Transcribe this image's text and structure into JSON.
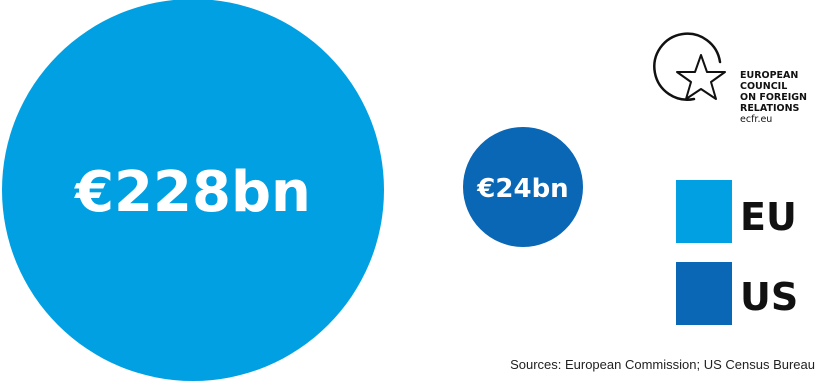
{
  "chart_data": {
    "type": "bubble",
    "unit": "€ bn",
    "series": [
      {
        "name": "EU",
        "value": 228,
        "label": "€228bn",
        "color": "#00a0e3"
      },
      {
        "name": "US",
        "value": 24,
        "label": "€24bn",
        "color": "#0a67b5"
      }
    ],
    "legend": {
      "placement": "right",
      "items": [
        {
          "label": "EU",
          "color": "#00a0e3"
        },
        {
          "label": "US",
          "color": "#0a67b5"
        }
      ]
    },
    "source": "Sources: European Commission; US Census Bureau"
  },
  "logo": {
    "lines": [
      "EUROPEAN",
      "COUNCIL",
      "ON FOREIGN",
      "RELATIONS"
    ],
    "url": "ecfr.eu",
    "icon": "star-circle-icon"
  }
}
